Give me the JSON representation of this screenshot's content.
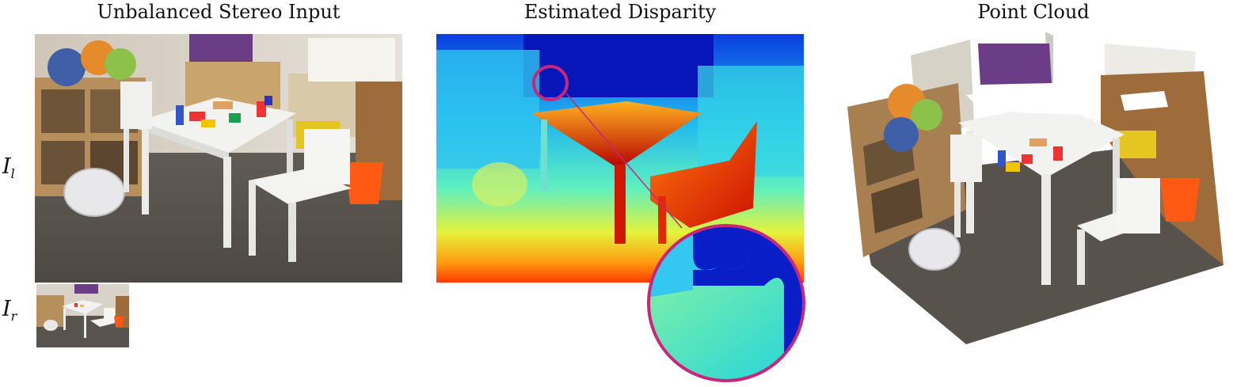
{
  "panels": [
    {
      "id": "stereo-input",
      "title": "Unbalanced Stereo Input"
    },
    {
      "id": "disparity",
      "title": "Estimated Disparity"
    },
    {
      "id": "point-cloud",
      "title": "Point Cloud"
    }
  ],
  "labels": {
    "left_symbol": "I",
    "left_subscript": "l",
    "right_symbol": "I",
    "right_subscript": "r"
  },
  "colors": {
    "zoom_circle_stroke": "#c8267a",
    "floor": "#57524d",
    "wall": "#d9d4cc",
    "table_white": "#f2f2f0"
  }
}
